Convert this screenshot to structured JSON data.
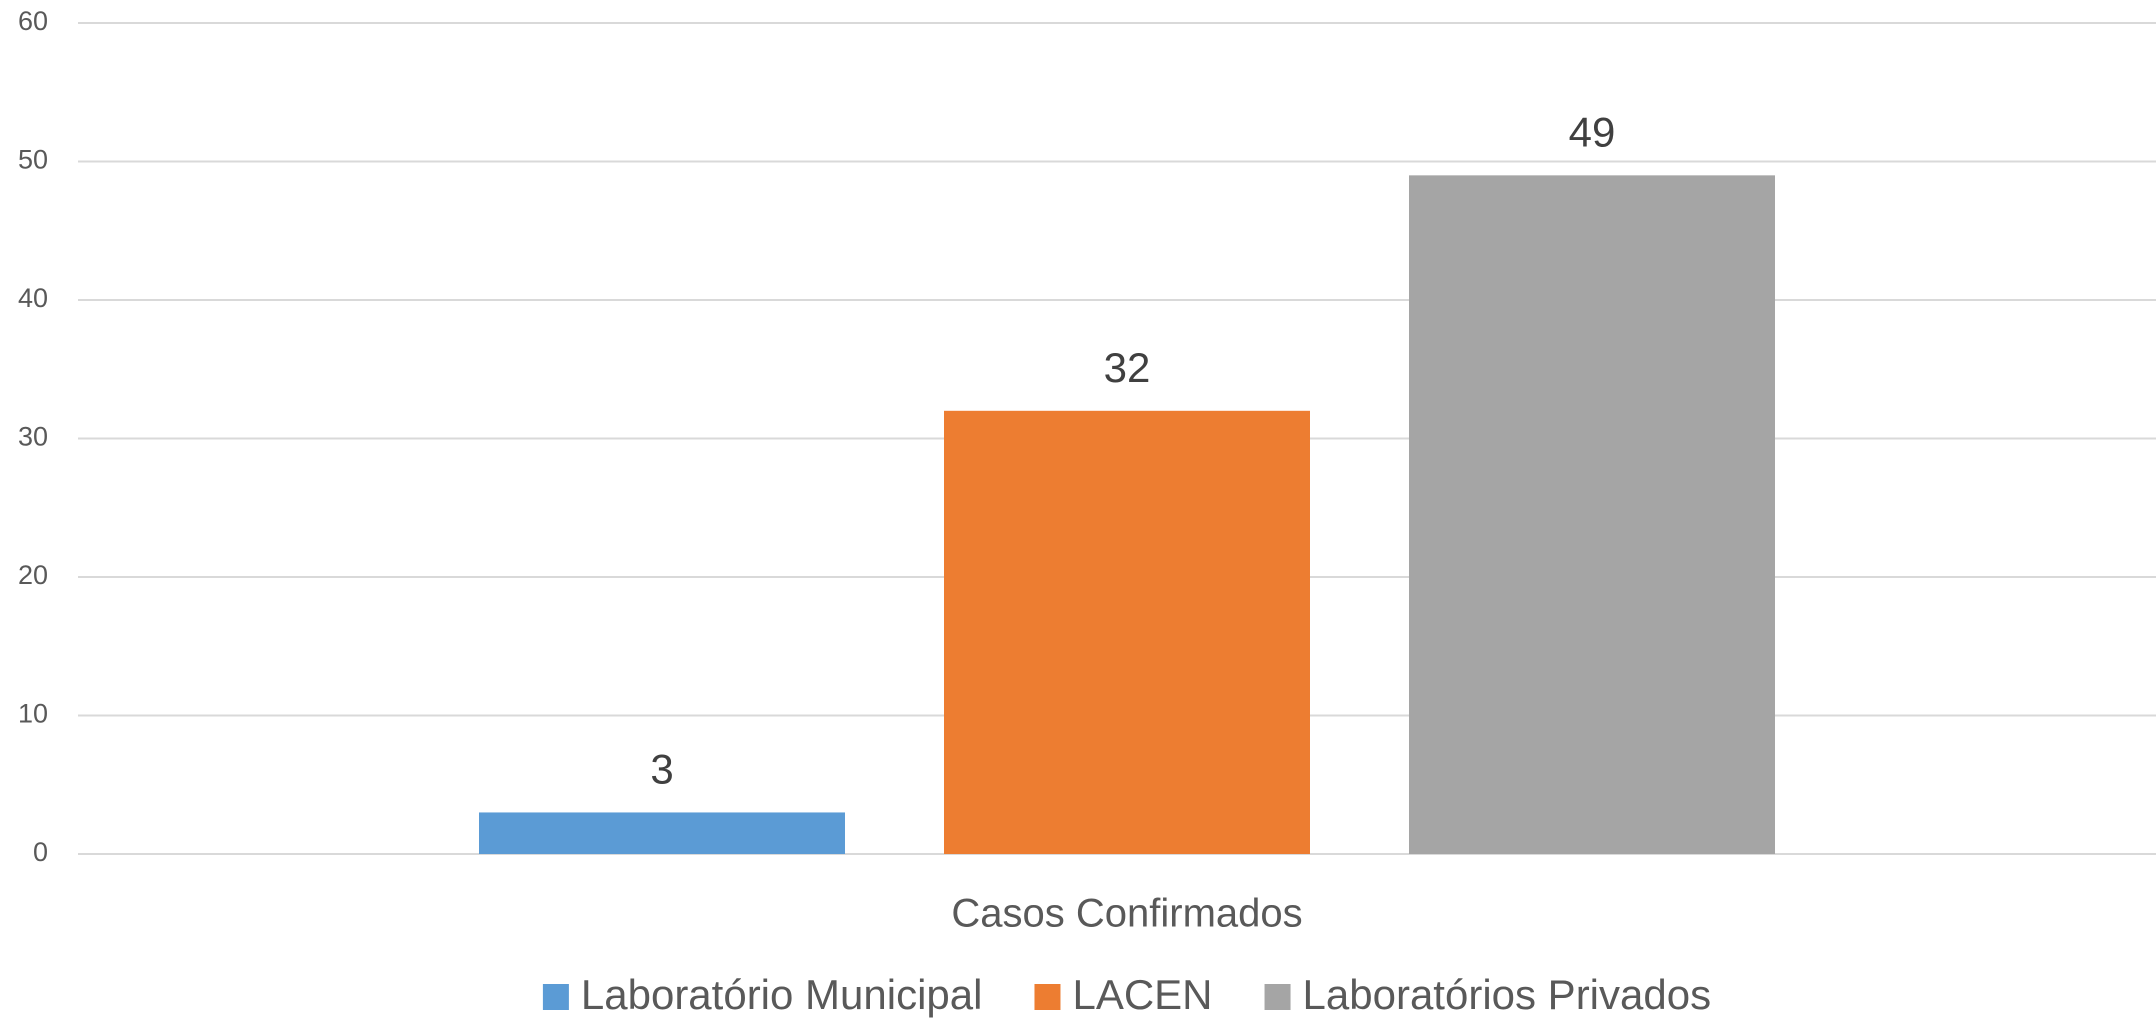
{
  "chart_data": {
    "type": "bar",
    "categories": [
      "Casos Confirmados"
    ],
    "series": [
      {
        "name": "Laboratório Municipal",
        "color": "#5b9bd5",
        "values": [
          3
        ]
      },
      {
        "name": "LACEN",
        "color": "#ed7d31",
        "values": [
          32
        ]
      },
      {
        "name": "Laboratórios Privados",
        "color": "#a5a5a5",
        "values": [
          49
        ]
      }
    ],
    "ylim": [
      0,
      60
    ],
    "yticks": [
      0,
      10,
      20,
      30,
      40,
      50,
      60
    ],
    "grid": true,
    "data_labels": true,
    "legend": "bottom"
  }
}
